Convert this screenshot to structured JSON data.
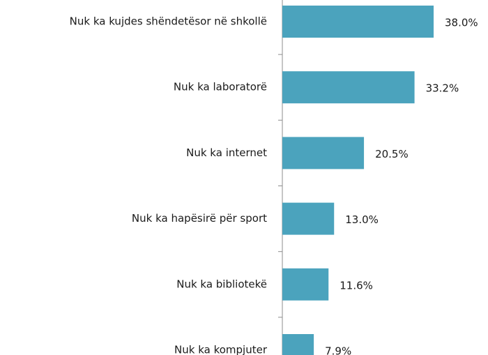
{
  "chart_data": {
    "type": "bar",
    "orientation": "horizontal",
    "categories": [
      "Nuk ka kujdes shëndetësor në shkollë",
      "Nuk ka laboratorë",
      "Nuk ka internet",
      "Nuk ka hapësirë për sport",
      "Nuk ka bibliotekë",
      "Nuk ka kompjuter"
    ],
    "values": [
      38.0,
      33.2,
      20.5,
      13.0,
      11.6,
      7.9
    ],
    "value_labels": [
      "38.0%",
      "33.2%",
      "20.5%",
      "13.0%",
      "11.6%",
      "7.9%"
    ],
    "color": "#4ba3bd"
  }
}
